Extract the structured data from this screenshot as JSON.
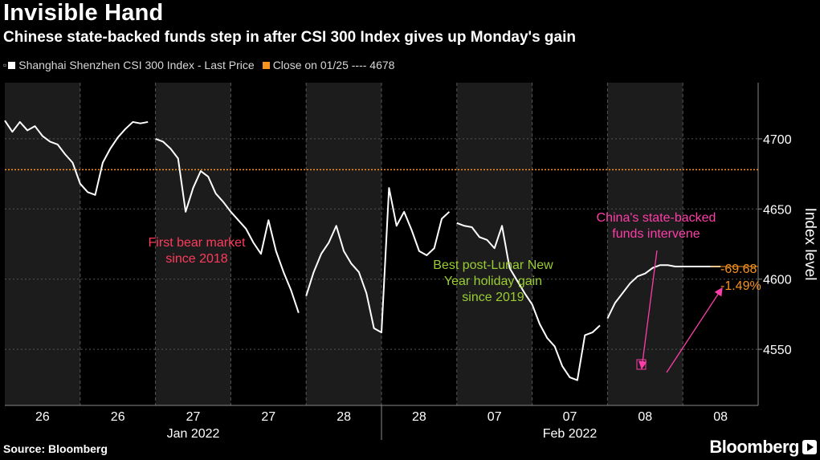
{
  "header": {
    "title": "Invisible Hand",
    "subtitle": "Chinese state-backed funds step in after CSI 300 Index gives up Monday's gain"
  },
  "legend": {
    "series_label": "Shanghai Shenzhen CSI 300 Index - Last Price",
    "close_label": "Close on 01/25 ---- 4678",
    "series_color": "#ffffff",
    "close_color": "#f7931e"
  },
  "footer": {
    "source": "Source: Bloomberg",
    "brand": "Bloomberg"
  },
  "chart_data": {
    "type": "line",
    "title": "Invisible Hand",
    "ylabel": "Index level",
    "ylim": [
      4510,
      4740
    ],
    "yticks": [
      4550,
      4600,
      4650,
      4700
    ],
    "reference_line": {
      "value": 4678,
      "color": "#f7931e",
      "label": "Close on 01/25 ---- 4678"
    },
    "sessions": [
      {
        "label": "26",
        "shaded": true
      },
      {
        "label": "26",
        "shaded": false
      },
      {
        "label": "27",
        "shaded": true
      },
      {
        "label": "27",
        "shaded": false
      },
      {
        "label": "28",
        "shaded": true
      },
      {
        "label": "28",
        "shaded": false
      },
      {
        "label": "07",
        "shaded": true
      },
      {
        "label": "07",
        "shaded": false
      },
      {
        "label": "08",
        "shaded": true
      },
      {
        "label": "08",
        "shaded": false
      }
    ],
    "month_labels": [
      "Jan 2022",
      "Feb 2022"
    ],
    "series": [
      {
        "name": "Shanghai Shenzhen CSI 300 Index - Last Price",
        "color": "#ffffff",
        "x": [
          0,
          0.1,
          0.2,
          0.3,
          0.4,
          0.5,
          0.6,
          0.7,
          0.8,
          0.9,
          1.0,
          1.1,
          1.2,
          1.3,
          1.4,
          1.5,
          1.6,
          1.7,
          1.8,
          1.9,
          2.0,
          2.1,
          2.2,
          2.3,
          2.4,
          2.5,
          2.6,
          2.7,
          2.8,
          2.9,
          3.0,
          3.1,
          3.2,
          3.3,
          3.4,
          3.5,
          3.6,
          3.7,
          3.8,
          3.9,
          4.0,
          4.1,
          4.2,
          4.3,
          4.4,
          4.5,
          4.6,
          4.7,
          4.8,
          4.9,
          5.0,
          5.1,
          5.2,
          5.3,
          5.4,
          5.5,
          5.6,
          5.7,
          5.8,
          5.9,
          6.0,
          6.1,
          6.2,
          6.3,
          6.4,
          6.5,
          6.6,
          6.7,
          6.8,
          6.9,
          7.0,
          7.1,
          7.2,
          7.3,
          7.4,
          7.5,
          7.6,
          7.7,
          7.8,
          7.9,
          8.0,
          8.1,
          8.2,
          8.3,
          8.4,
          8.5,
          8.6,
          8.7,
          8.8,
          8.9,
          9.0,
          9.1,
          9.2,
          9.3,
          9.4,
          9.5
        ],
        "values": [
          4713,
          4705,
          4712,
          4706,
          4709,
          4702,
          4698,
          4696,
          4689,
          4683,
          4668,
          4662,
          4660,
          4683,
          4693,
          4701,
          4707,
          4712,
          4711,
          4712,
          4700,
          4698,
          4693,
          4686,
          4648,
          4665,
          4677,
          4673,
          4661,
          4655,
          4648,
          4642,
          4636,
          4626,
          4618,
          4642,
          4620,
          4605,
          4592,
          4576,
          4588,
          4605,
          4618,
          4626,
          4638,
          4620,
          4611,
          4605,
          4590,
          4565,
          4562,
          4665,
          4638,
          4648,
          4635,
          4620,
          4617,
          4622,
          4643,
          4648,
          4640,
          4638,
          4637,
          4630,
          4628,
          4622,
          4638,
          4608,
          4599,
          4590,
          4582,
          4568,
          4558,
          4552,
          4538,
          4530,
          4528,
          4560,
          4562,
          4567,
          4572,
          4583,
          4590,
          4597,
          4602,
          4604,
          4608,
          4610,
          4610,
          4609,
          4609,
          4609,
          4609,
          4609,
          4609,
          4609
        ]
      }
    ],
    "annotations": [
      {
        "text_lines": [
          "First bear market",
          "since 2018"
        ],
        "color": "#ff3b5c"
      },
      {
        "text_lines": [
          "Best post-Lunar New",
          "Year holiday gain",
          "since 2019"
        ],
        "color": "#9acd32"
      },
      {
        "text_lines": [
          "China's state-backed",
          "funds intervene"
        ],
        "color": "#ff3da8"
      },
      {
        "text_lines": [
          "-69.68",
          "-1.49%"
        ],
        "color": "#f7931e"
      }
    ]
  }
}
